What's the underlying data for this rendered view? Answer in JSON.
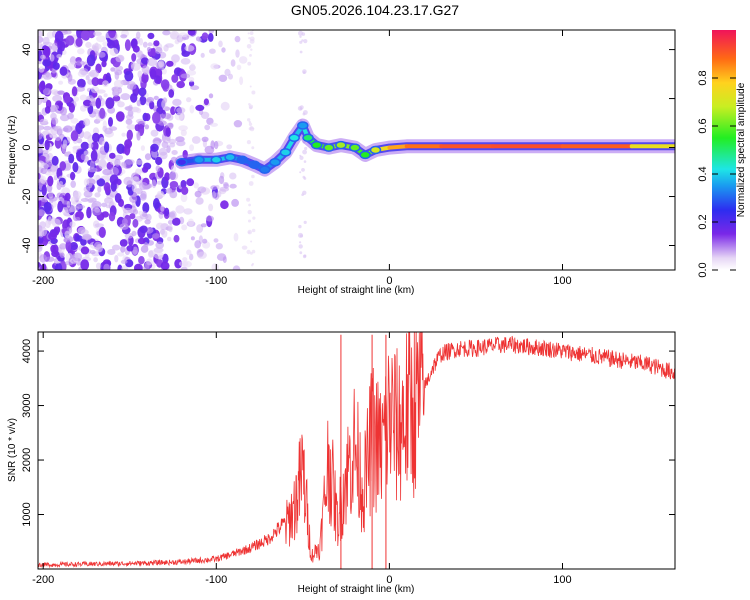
{
  "title": "GN05.2026.104.23.17.G27",
  "chart_data": [
    {
      "type": "heatmap",
      "name": "spectrogram",
      "xlabel": "Height of straight line (km)",
      "ylabel": "Frequency (Hz)",
      "xlim": [
        -203,
        165
      ],
      "ylim": [
        -50,
        48
      ],
      "xticks": [
        -200,
        -100,
        0,
        100
      ],
      "xtick_labels": [
        "-200",
        "-100",
        "0",
        "100"
      ],
      "yticks": [
        -40,
        -20,
        0,
        20,
        40
      ],
      "ytick_labels": [
        "-40",
        "-20",
        "0",
        "20",
        "40"
      ],
      "colorbar": {
        "label": "Normalized spectral amplitude",
        "range": [
          0,
          1
        ],
        "ticks": [
          0.0,
          0.2,
          0.4,
          0.6,
          0.8
        ],
        "tick_labels": [
          "0.0",
          "0.2",
          "0.4",
          "0.6",
          "0.8"
        ]
      },
      "noise_region_km": [
        -203,
        -82
      ],
      "signal_track": [
        {
          "x": -120,
          "freq": -6,
          "amp": 0.22
        },
        {
          "x": -110,
          "freq": -5,
          "amp": 0.35
        },
        {
          "x": -100,
          "freq": -5,
          "amp": 0.4
        },
        {
          "x": -92,
          "freq": -4,
          "amp": 0.38
        },
        {
          "x": -85,
          "freq": -5,
          "amp": 0.3
        },
        {
          "x": -78,
          "freq": -7,
          "amp": 0.3
        },
        {
          "x": -72,
          "freq": -9,
          "amp": 0.32
        },
        {
          "x": -66,
          "freq": -6,
          "amp": 0.35
        },
        {
          "x": -60,
          "freq": -2,
          "amp": 0.4
        },
        {
          "x": -55,
          "freq": 4,
          "amp": 0.42
        },
        {
          "x": -50,
          "freq": 9,
          "amp": 0.35
        },
        {
          "x": -47,
          "freq": 4,
          "amp": 0.5
        },
        {
          "x": -42,
          "freq": 1,
          "amp": 0.55
        },
        {
          "x": -35,
          "freq": 0,
          "amp": 0.6
        },
        {
          "x": -28,
          "freq": 1,
          "amp": 0.65
        },
        {
          "x": -20,
          "freq": 0,
          "amp": 0.6
        },
        {
          "x": -14,
          "freq": -3,
          "amp": 0.55
        },
        {
          "x": -8,
          "freq": -1,
          "amp": 0.7
        },
        {
          "x": 0,
          "freq": 0,
          "amp": 0.8
        },
        {
          "x": 10,
          "freq": 0.5,
          "amp": 0.85
        },
        {
          "x": 30,
          "freq": 0.5,
          "amp": 0.9
        },
        {
          "x": 60,
          "freq": 0.5,
          "amp": 0.92
        },
        {
          "x": 100,
          "freq": 0.5,
          "amp": 0.92
        },
        {
          "x": 140,
          "freq": 0.5,
          "amp": 0.88
        },
        {
          "x": 165,
          "freq": 0.5,
          "amp": 0.6
        }
      ]
    },
    {
      "type": "line",
      "name": "snr",
      "xlabel": "Height of straight line (km)",
      "ylabel": "SNR (10 * v/v)",
      "xlim": [
        -203,
        165
      ],
      "ylim": [
        0,
        4350
      ],
      "xticks": [
        -200,
        -100,
        0,
        100
      ],
      "xtick_labels": [
        "-200",
        "-100",
        "0",
        "100"
      ],
      "yticks": [
        1000,
        2000,
        3000,
        4000
      ],
      "ytick_labels": [
        "1000",
        "2000",
        "3000",
        "4000"
      ],
      "series": [
        {
          "name": "SNR",
          "color": "#ee3333",
          "x": [
            -203,
            -180,
            -160,
            -140,
            -120,
            -100,
            -90,
            -80,
            -70,
            -60,
            -55,
            -50,
            -45,
            -40,
            -35,
            -30,
            -25,
            -20,
            -15,
            -10,
            -5,
            0,
            5,
            10,
            15,
            20,
            25,
            30,
            40,
            50,
            60,
            70,
            80,
            90,
            100,
            110,
            120,
            130,
            140,
            150,
            160,
            165
          ],
          "y": [
            60,
            70,
            80,
            90,
            110,
            160,
            250,
            350,
            500,
            800,
            1200,
            1900,
            250,
            450,
            2200,
            900,
            1800,
            2400,
            1500,
            2600,
            2300,
            3000,
            2700,
            3050,
            3200,
            3300,
            3700,
            3950,
            4050,
            4050,
            4100,
            4120,
            4080,
            4050,
            4000,
            3950,
            3900,
            3850,
            3800,
            3750,
            3650,
            3600
          ]
        }
      ]
    }
  ]
}
